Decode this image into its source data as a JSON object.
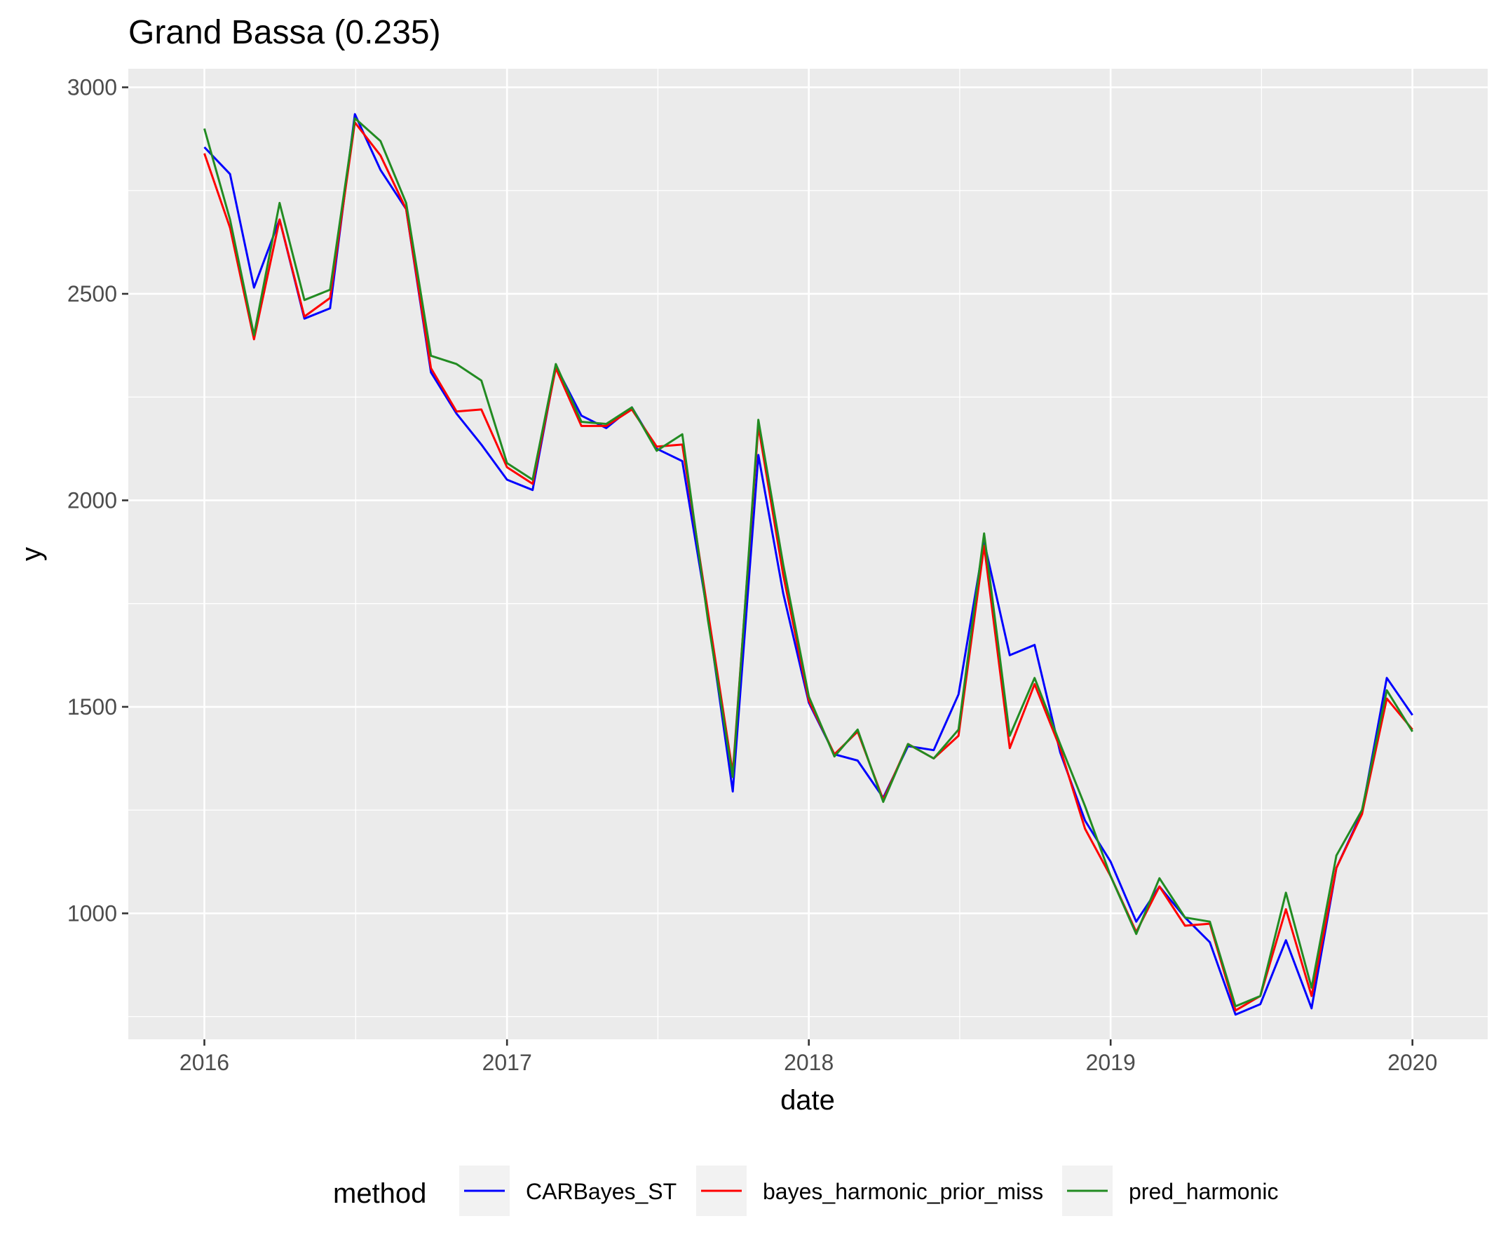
{
  "chart_data": {
    "type": "line",
    "title": "Grand Bassa (0.235)",
    "xlabel": "date",
    "ylabel": "y",
    "x_ticks": [
      "2016",
      "2017",
      "2018",
      "2019",
      "2020"
    ],
    "y_ticks": [
      "1000",
      "1500",
      "2000",
      "2500",
      "3000"
    ],
    "xlim": [
      "2015-10-01",
      "2020-04-01"
    ],
    "ylim": [
      695,
      3045
    ],
    "grid": true,
    "legend_title": "method",
    "legend_position": "bottom",
    "x": [
      "2016-01",
      "2016-02",
      "2016-03",
      "2016-04",
      "2016-05",
      "2016-06",
      "2016-07",
      "2016-08",
      "2016-09",
      "2016-10",
      "2016-11",
      "2016-12",
      "2017-01",
      "2017-02",
      "2017-03",
      "2017-04",
      "2017-05",
      "2017-06",
      "2017-07",
      "2017-08",
      "2017-09",
      "2017-10",
      "2017-11",
      "2017-12",
      "2018-01",
      "2018-02",
      "2018-03",
      "2018-04",
      "2018-05",
      "2018-06",
      "2018-07",
      "2018-08",
      "2018-09",
      "2018-10",
      "2018-11",
      "2018-12",
      "2019-01",
      "2019-02",
      "2019-03",
      "2019-04",
      "2019-05",
      "2019-06",
      "2019-07",
      "2019-08",
      "2019-09",
      "2019-10",
      "2019-11",
      "2019-12",
      "2020-01"
    ],
    "series": [
      {
        "name": "CARBayes_ST",
        "color": "#0000ff",
        "values": [
          2855,
          2790,
          2515,
          2680,
          2440,
          2465,
          2935,
          2800,
          2705,
          2310,
          2210,
          2135,
          2050,
          2025,
          2325,
          2205,
          2175,
          2225,
          2125,
          2095,
          1720,
          1295,
          2110,
          1775,
          1510,
          1385,
          1370,
          1280,
          1405,
          1395,
          1530,
          1900,
          1625,
          1650,
          1390,
          1225,
          1125,
          980,
          1065,
          990,
          930,
          755,
          780,
          935,
          770,
          1110,
          1245,
          1570,
          1480
        ]
      },
      {
        "name": "bayes_harmonic_prior_miss",
        "color": "#ff0000",
        "values": [
          2840,
          2660,
          2390,
          2680,
          2445,
          2490,
          2915,
          2835,
          2705,
          2320,
          2215,
          2220,
          2080,
          2040,
          2320,
          2180,
          2180,
          2220,
          2130,
          2135,
          1730,
          1340,
          2180,
          1820,
          1515,
          1385,
          1440,
          1275,
          1410,
          1375,
          1430,
          1890,
          1400,
          1555,
          1400,
          1205,
          1090,
          955,
          1065,
          970,
          975,
          765,
          800,
          1010,
          800,
          1110,
          1240,
          1520,
          1445
        ]
      },
      {
        "name": "pred_harmonic",
        "color": "#228b22",
        "values": [
          2900,
          2680,
          2400,
          2720,
          2485,
          2510,
          2925,
          2870,
          2720,
          2350,
          2330,
          2290,
          2090,
          2050,
          2330,
          2190,
          2185,
          2225,
          2120,
          2160,
          1710,
          1330,
          2195,
          1845,
          1525,
          1380,
          1445,
          1270,
          1410,
          1375,
          1445,
          1920,
          1430,
          1570,
          1410,
          1260,
          1090,
          950,
          1085,
          990,
          980,
          775,
          800,
          1050,
          820,
          1140,
          1250,
          1540,
          1440
        ]
      }
    ]
  }
}
